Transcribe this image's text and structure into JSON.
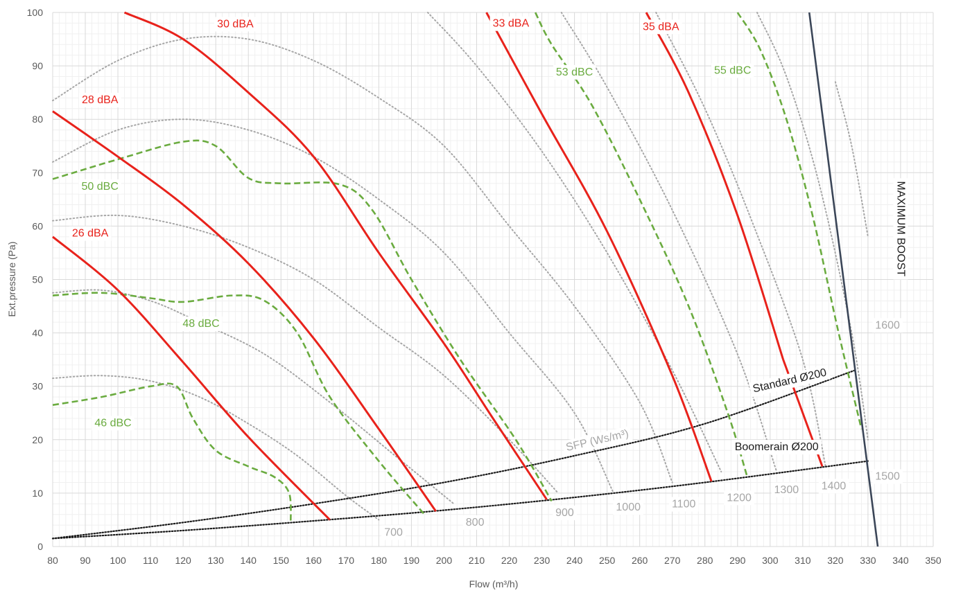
{
  "chart_data": {
    "type": "line",
    "xlabel": "Flow (m³/h)",
    "ylabel": "Ext.pressure (Pa)",
    "xlim": [
      80,
      350
    ],
    "ylim": [
      0,
      100
    ],
    "x_ticks": [
      80,
      90,
      100,
      110,
      120,
      130,
      140,
      150,
      160,
      170,
      180,
      190,
      200,
      210,
      220,
      230,
      240,
      250,
      260,
      270,
      280,
      290,
      300,
      310,
      320,
      330,
      340,
      350
    ],
    "y_ticks": [
      0,
      10,
      20,
      30,
      40,
      50,
      60,
      70,
      80,
      90,
      100
    ],
    "grid": true,
    "minor_grid": true,
    "colors": {
      "dba": "#e8221b",
      "dbc": "#6aab3f",
      "rpm": "#a6a6a6",
      "duct": "#1a1a1a",
      "max": "#3b4658",
      "grid": "#d9d9d9",
      "minor_grid": "#f0f0f0"
    },
    "dba_curves": [
      {
        "label": "26 dBA",
        "points": [
          [
            80,
            58
          ],
          [
            100,
            48
          ],
          [
            120,
            34.5
          ],
          [
            140,
            20.5
          ],
          [
            165,
            5
          ]
        ]
      },
      {
        "label": "28 dBA",
        "points": [
          [
            80,
            81.5
          ],
          [
            100,
            73
          ],
          [
            120,
            64
          ],
          [
            140,
            53
          ],
          [
            160,
            39
          ],
          [
            180,
            22
          ],
          [
            197.5,
            6.6
          ]
        ]
      },
      {
        "label": "30 dBA",
        "points": [
          [
            102,
            100
          ],
          [
            120,
            95
          ],
          [
            140,
            85
          ],
          [
            160,
            73
          ],
          [
            180,
            55
          ],
          [
            200,
            38
          ],
          [
            215,
            24
          ],
          [
            231.5,
            8.8
          ]
        ]
      },
      {
        "label": "33 dBA",
        "points": [
          [
            213,
            100
          ],
          [
            230,
            81
          ],
          [
            250,
            59
          ],
          [
            270,
            32
          ],
          [
            282,
            12.2
          ]
        ]
      },
      {
        "label": "35 dBA",
        "points": [
          [
            262,
            100
          ],
          [
            275,
            85
          ],
          [
            290,
            62
          ],
          [
            304,
            35
          ]
        ]
      },
      {
        "label": "35 dBA",
        "points": [
          [
            304,
            35
          ],
          [
            316,
            15
          ]
        ]
      }
    ],
    "dbc_curves": [
      {
        "label": "46 dBC",
        "points": [
          [
            80,
            26.5
          ],
          [
            95,
            28
          ],
          [
            110,
            30
          ],
          [
            118,
            30
          ],
          [
            123,
            24
          ],
          [
            130,
            18
          ],
          [
            140,
            15
          ],
          [
            148,
            13
          ],
          [
            152.5,
            10
          ],
          [
            153,
            4.5
          ]
        ]
      },
      {
        "label": "48 dBC",
        "points": [
          [
            80,
            47
          ],
          [
            95,
            47.5
          ],
          [
            110,
            46.5
          ],
          [
            120,
            45.8
          ],
          [
            135,
            47
          ],
          [
            145,
            46
          ],
          [
            155,
            40
          ],
          [
            165,
            28
          ],
          [
            180,
            16
          ],
          [
            194,
            6
          ]
        ]
      },
      {
        "label": "50 dBC",
        "points": [
          [
            80,
            68.8
          ],
          [
            100,
            72.5
          ],
          [
            120,
            75.8
          ],
          [
            130,
            75
          ],
          [
            140,
            69
          ],
          [
            150,
            68
          ],
          [
            168,
            67.8
          ],
          [
            178,
            63
          ],
          [
            190,
            50
          ],
          [
            205,
            35
          ],
          [
            222,
            20
          ],
          [
            233,
            8.5
          ]
        ]
      },
      {
        "label": "53 dBC",
        "points": [
          [
            228,
            100
          ],
          [
            233,
            94
          ],
          [
            245,
            83
          ],
          [
            260,
            65
          ],
          [
            275,
            45
          ],
          [
            287,
            25
          ],
          [
            293,
            13
          ]
        ]
      },
      {
        "label": "55 dBC",
        "points": [
          [
            290,
            100
          ],
          [
            297,
            93
          ],
          [
            305,
            80
          ],
          [
            313,
            62
          ],
          [
            321,
            40
          ],
          [
            328,
            22
          ]
        ]
      }
    ],
    "rpm_curves": [
      {
        "label": "700",
        "points": [
          [
            80,
            31.5
          ],
          [
            95,
            32
          ],
          [
            110,
            31
          ],
          [
            125,
            28
          ],
          [
            140,
            23
          ],
          [
            155,
            17
          ],
          [
            170,
            9.5
          ],
          [
            180,
            5
          ]
        ]
      },
      {
        "label": "800",
        "points": [
          [
            80,
            47.5
          ],
          [
            95,
            48
          ],
          [
            110,
            46
          ],
          [
            125,
            42
          ],
          [
            145,
            36
          ],
          [
            165,
            27
          ],
          [
            185,
            17
          ],
          [
            203,
            8
          ]
        ]
      },
      {
        "label": "900",
        "points": [
          [
            80,
            61
          ],
          [
            100,
            62
          ],
          [
            120,
            60
          ],
          [
            140,
            56
          ],
          [
            160,
            50
          ],
          [
            180,
            41
          ],
          [
            200,
            32
          ],
          [
            220,
            20
          ],
          [
            235,
            10
          ]
        ]
      },
      {
        "label": "1000",
        "points": [
          [
            80,
            72
          ],
          [
            100,
            78
          ],
          [
            120,
            80
          ],
          [
            140,
            78
          ],
          [
            160,
            73
          ],
          [
            180,
            65
          ],
          [
            200,
            55
          ],
          [
            220,
            40
          ],
          [
            240,
            25
          ],
          [
            252,
            10
          ]
        ]
      },
      {
        "label": "1100",
        "points": [
          [
            80,
            83.5
          ],
          [
            100,
            91
          ],
          [
            120,
            95
          ],
          [
            140,
            95
          ],
          [
            160,
            91
          ],
          [
            180,
            84
          ],
          [
            200,
            75
          ],
          [
            220,
            60
          ],
          [
            240,
            45
          ],
          [
            260,
            27
          ],
          [
            270,
            12
          ]
        ]
      },
      {
        "label": "1200",
        "points": [
          [
            195,
            100
          ],
          [
            210,
            90
          ],
          [
            230,
            74
          ],
          [
            250,
            55
          ],
          [
            270,
            33
          ],
          [
            285,
            14
          ]
        ]
      },
      {
        "label": "1300",
        "points": [
          [
            236,
            100
          ],
          [
            250,
            86
          ],
          [
            270,
            63
          ],
          [
            290,
            36
          ],
          [
            302,
            14
          ]
        ]
      },
      {
        "label": "1400",
        "points": [
          [
            265,
            100
          ],
          [
            280,
            82
          ],
          [
            295,
            60
          ],
          [
            310,
            35
          ],
          [
            317,
            15
          ]
        ]
      },
      {
        "label": "1500",
        "points": [
          [
            296,
            100
          ],
          [
            305,
            88
          ],
          [
            315,
            68
          ],
          [
            325,
            40
          ],
          [
            330,
            20
          ]
        ]
      },
      {
        "label": "1600",
        "points": [
          [
            320,
            87
          ],
          [
            325,
            75
          ],
          [
            330,
            58
          ]
        ]
      }
    ],
    "duct_curves": [
      {
        "label": "Standard Ø200",
        "points": [
          [
            80,
            1.5
          ],
          [
            120,
            4.5
          ],
          [
            160,
            8
          ],
          [
            200,
            12
          ],
          [
            240,
            17
          ],
          [
            280,
            23
          ],
          [
            326,
            33
          ]
        ]
      },
      {
        "label": "Boomerain Ø200",
        "points": [
          [
            80,
            1.5
          ],
          [
            120,
            3
          ],
          [
            160,
            4.8
          ],
          [
            200,
            6.8
          ],
          [
            240,
            9.2
          ],
          [
            280,
            12
          ],
          [
            330,
            16
          ]
        ]
      }
    ],
    "max_boost": {
      "label": "MAXIMUM BOOST",
      "points": [
        [
          312,
          100
        ],
        [
          333,
          0
        ]
      ]
    },
    "sfp_label": "SFP (Ws/m³)",
    "annotations": [
      {
        "text": "30 dBA",
        "series": "dba",
        "x": 136,
        "y": 97.8
      },
      {
        "text": "28 dBA",
        "series": "dba",
        "x": 94.5,
        "y": 83.6
      },
      {
        "text": "26 dBA",
        "series": "dba",
        "x": 91.5,
        "y": 58.6
      },
      {
        "text": "33 dBA",
        "series": "dba",
        "x": 220.5,
        "y": 97.9
      },
      {
        "text": "35 dBA",
        "series": "dba",
        "x": 266.5,
        "y": 97.3
      },
      {
        "text": "53 dBC",
        "series": "dbc",
        "x": 240,
        "y": 88.8
      },
      {
        "text": "55 dBC",
        "series": "dbc",
        "x": 288.5,
        "y": 89.1
      },
      {
        "text": "50 dBC",
        "series": "dbc",
        "x": 94.5,
        "y": 67.4
      },
      {
        "text": "48 dBC",
        "series": "dbc",
        "x": 125.5,
        "y": 41.7
      },
      {
        "text": "46 dBC",
        "series": "dbc",
        "x": 98.5,
        "y": 23.1
      },
      {
        "text": "700",
        "series": "rpm",
        "x": 184.5,
        "y": 2.6
      },
      {
        "text": "800",
        "series": "rpm",
        "x": 209.5,
        "y": 4.5
      },
      {
        "text": "900",
        "series": "rpm",
        "x": 237,
        "y": 6.3
      },
      {
        "text": "1000",
        "series": "rpm",
        "x": 256.5,
        "y": 7.3
      },
      {
        "text": "1100",
        "series": "rpm",
        "x": 273.5,
        "y": 7.9
      },
      {
        "text": "1200",
        "series": "rpm",
        "x": 290.5,
        "y": 9.1
      },
      {
        "text": "1300",
        "series": "rpm",
        "x": 305,
        "y": 10.6
      },
      {
        "text": "1400",
        "series": "rpm",
        "x": 319.5,
        "y": 11.3
      },
      {
        "text": "1500",
        "series": "rpm",
        "x": 336,
        "y": 13.1
      },
      {
        "text": "1600",
        "series": "rpm",
        "x": 336,
        "y": 41.4
      },
      {
        "text": "Standard Ø200",
        "series": "duct",
        "x": 306,
        "y": 31,
        "rotate": -13
      },
      {
        "text": "Boomerain Ø200",
        "series": "duct",
        "x": 302,
        "y": 18.6
      },
      {
        "text": "SFP (Ws/m³)",
        "series": "rpm",
        "x": 247,
        "y": 19.8,
        "rotate": -13
      },
      {
        "text": "MAXIMUM BOOST",
        "series": "max",
        "x": 340,
        "y": 59.5,
        "rotate": 90
      }
    ]
  }
}
